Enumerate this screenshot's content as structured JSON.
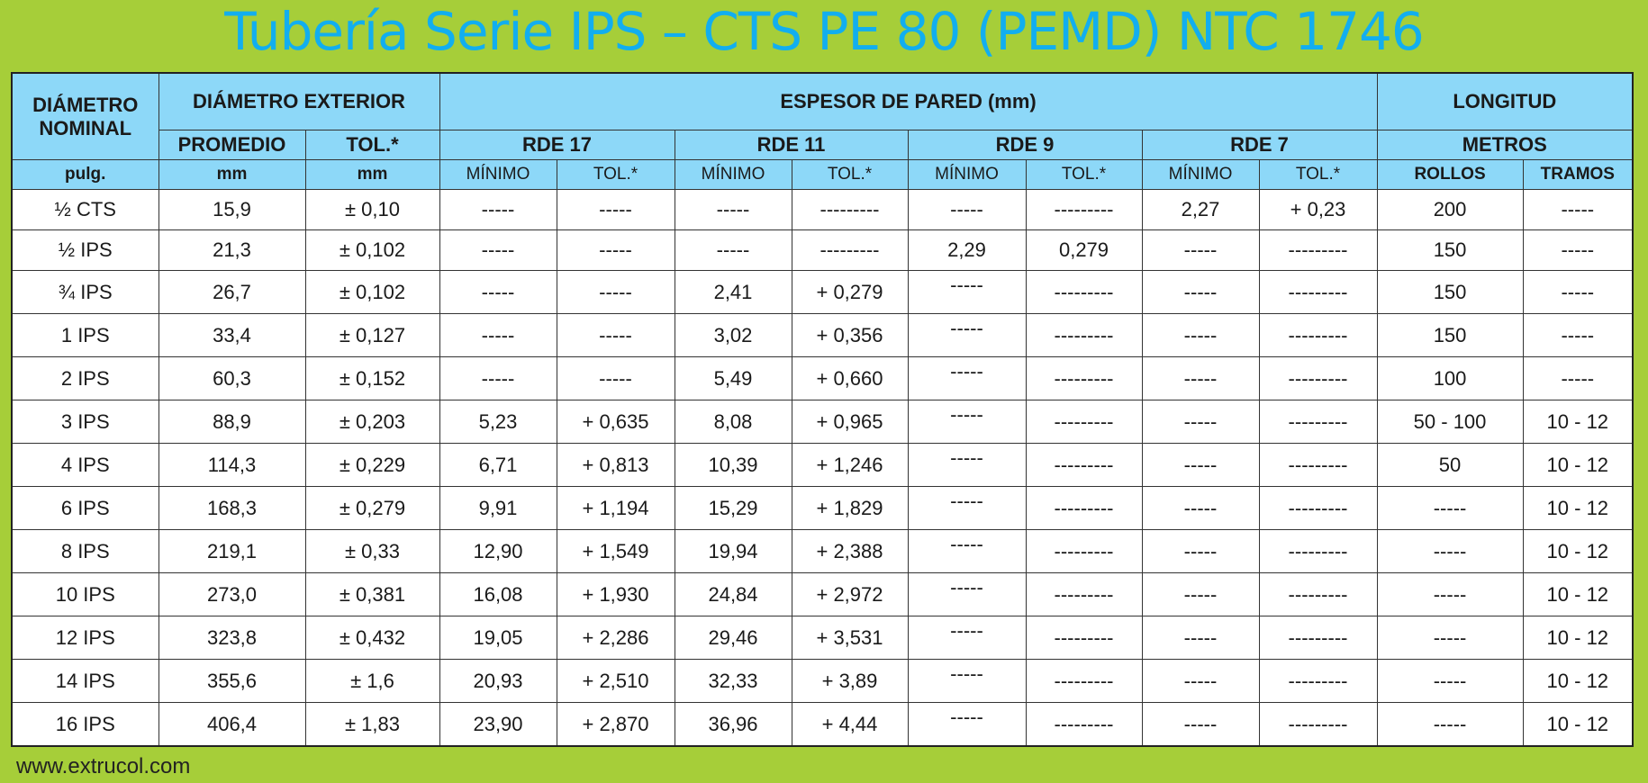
{
  "title": "Tubería Serie IPS – CTS PE 80 (PEMD) NTC 1746",
  "header": {
    "nominal": "DIÁMETRO NOMINAL",
    "exterior": "DIÁMETRO EXTERIOR",
    "espesor": "ESPESOR DE PARED (mm)",
    "longitud": "LONGITUD",
    "promedio": "PROMEDIO",
    "tol": "TOL.*",
    "rde17": "RDE 17",
    "rde11": "RDE 11",
    "rde9": "RDE 9",
    "rde7": "RDE 7",
    "metros": "METROS",
    "units": [
      "pulg.",
      "mm",
      "mm",
      "MÍNIMO",
      "TOL.*",
      "MÍNIMO",
      "TOL.*",
      "MÍNIMO",
      "TOL.*",
      "MÍNIMO",
      "TOL.*",
      "ROLLOS",
      "TRAMOS"
    ]
  },
  "rows": [
    [
      "½ CTS",
      "15,9",
      "± 0,10",
      "-----",
      "-----",
      "-----",
      "---------",
      "-----",
      "---------",
      "2,27",
      "+ 0,23",
      "200",
      "-----"
    ],
    [
      "½ IPS",
      "21,3",
      "± 0,102",
      "-----",
      "-----",
      "-----",
      "---------",
      "2,29",
      "0,279",
      "-----",
      "---------",
      "150",
      "-----"
    ],
    [
      "¾ IPS",
      "26,7",
      "± 0,102",
      "-----",
      "-----",
      "2,41",
      "+ 0,279",
      "-----",
      "---------",
      "-----",
      "---------",
      "150",
      "-----"
    ],
    [
      "1 IPS",
      "33,4",
      "± 0,127",
      "-----",
      "-----",
      "3,02",
      "+ 0,356",
      "-----",
      "---------",
      "-----",
      "---------",
      "150",
      "-----"
    ],
    [
      "2 IPS",
      "60,3",
      "± 0,152",
      "-----",
      "-----",
      "5,49",
      "+ 0,660",
      "-----",
      "---------",
      "-----",
      "---------",
      "100",
      "-----"
    ],
    [
      "3 IPS",
      "88,9",
      "± 0,203",
      "5,23",
      "+ 0,635",
      "8,08",
      "+ 0,965",
      "-----",
      "---------",
      "-----",
      "---------",
      "50 - 100",
      "10 - 12"
    ],
    [
      "4 IPS",
      "114,3",
      "± 0,229",
      "6,71",
      "+ 0,813",
      "10,39",
      "+ 1,246",
      "-----",
      "---------",
      "-----",
      "---------",
      "50",
      "10 - 12"
    ],
    [
      "6 IPS",
      "168,3",
      "± 0,279",
      "9,91",
      "+ 1,194",
      "15,29",
      "+ 1,829",
      "-----",
      "---------",
      "-----",
      "---------",
      "-----",
      "10 - 12"
    ],
    [
      "8 IPS",
      "219,1",
      "± 0,33",
      "12,90",
      "+ 1,549",
      "19,94",
      "+ 2,388",
      "-----",
      "---------",
      "-----",
      "---------",
      "-----",
      "10 - 12"
    ],
    [
      "10 IPS",
      "273,0",
      "± 0,381",
      "16,08",
      "+ 1,930",
      "24,84",
      "+ 2,972",
      "-----",
      "---------",
      "-----",
      "---------",
      "-----",
      "10 - 12"
    ],
    [
      "12 IPS",
      "323,8",
      "± 0,432",
      "19,05",
      "+ 2,286",
      "29,46",
      "+ 3,531",
      "-----",
      "---------",
      "-----",
      "---------",
      "-----",
      "10 - 12"
    ],
    [
      "14 IPS",
      "355,6",
      "± 1,6",
      "20,93",
      "+ 2,510",
      "32,33",
      "+ 3,89",
      "-----",
      "---------",
      "-----",
      "---------",
      "-----",
      "10 - 12"
    ],
    [
      "16 IPS",
      "406,4",
      "± 1,83",
      "23,90",
      "+ 2,870",
      "36,96",
      "+ 4,44",
      "-----",
      "---------",
      "-----",
      "---------",
      "-----",
      "10 - 12"
    ]
  ],
  "footer": "www.extrucol.com",
  "colors": {
    "background": "#A6CE39",
    "header": "#8DD8F8",
    "title": "#12AEEF"
  }
}
